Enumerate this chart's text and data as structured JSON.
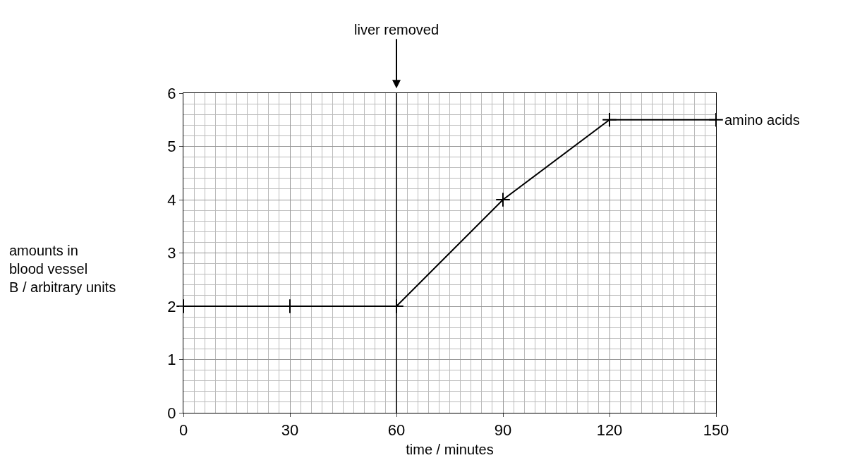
{
  "chart_data": {
    "type": "line",
    "xlabel": "time / minutes",
    "ylabel": "amounts in\nblood vessel\nB / arbitrary units",
    "x": [
      0,
      30,
      60,
      90,
      120,
      150
    ],
    "series": [
      {
        "name": "amino acids",
        "color": "#000000",
        "values": [
          2,
          2,
          2,
          4,
          5.5,
          5.5
        ]
      }
    ],
    "xlim": [
      0,
      150
    ],
    "xticks": [
      0,
      30,
      60,
      90,
      120,
      150
    ],
    "ylim": [
      0,
      6
    ],
    "yticks": [
      0,
      1,
      2,
      3,
      4,
      5,
      6
    ],
    "ref_lines": [
      {
        "axis": "x",
        "value": 60,
        "label": "liver removed",
        "color": "#000000"
      }
    ],
    "grid": true,
    "legend": false,
    "marker": "cross",
    "line_style": "solid"
  }
}
